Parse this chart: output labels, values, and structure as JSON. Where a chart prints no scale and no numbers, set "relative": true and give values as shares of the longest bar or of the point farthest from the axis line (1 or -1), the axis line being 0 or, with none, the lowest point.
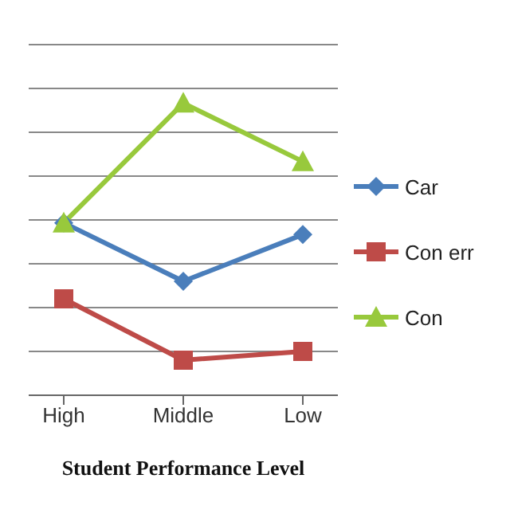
{
  "chart_data": {
    "type": "line",
    "relative": true,
    "xlabel": "Student Performance Level",
    "categories": [
      "High",
      "Middle",
      "Low"
    ],
    "grid": "y",
    "legend": "right",
    "series": [
      {
        "name": "Car",
        "color": "#4a7ebb",
        "marker": "diamond",
        "values": [
          0.59,
          0.39,
          0.55
        ]
      },
      {
        "name": "Con err",
        "color": "#be4b48",
        "marker": "square",
        "values": [
          0.33,
          0.12,
          0.15
        ]
      },
      {
        "name": "Con",
        "color": "#98c93c",
        "marker": "triangle",
        "values": [
          0.59,
          1,
          0.8
        ]
      }
    ]
  }
}
